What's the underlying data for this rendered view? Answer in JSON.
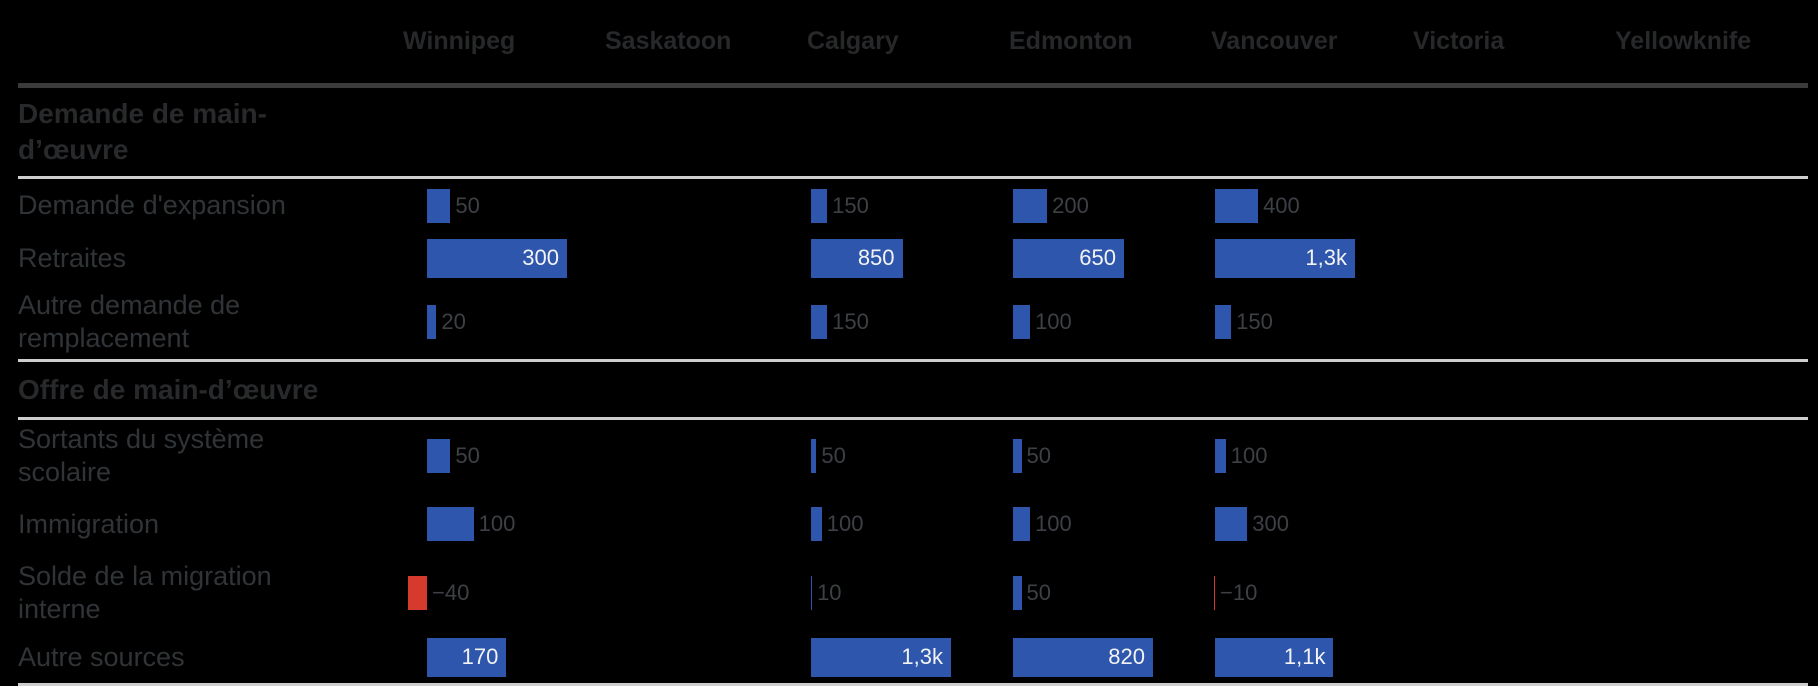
{
  "chart_data": {
    "type": "bar",
    "orientation": "horizontal",
    "columns": [
      "Winnipeg",
      "Saskatoon",
      "Calgary",
      "Edmonton",
      "Vancouver",
      "Victoria",
      "Yellowknife"
    ],
    "sections": [
      {
        "title": "Demande de main-d’œuvre",
        "rows": [
          {
            "label": "Demande d'expansion",
            "values": [
              50,
              null,
              150,
              200,
              400,
              null,
              null
            ],
            "displays": [
              "50",
              "",
              "150",
              "200",
              "400",
              "",
              ""
            ],
            "labels_inside": false
          },
          {
            "label": "Retraites",
            "values": [
              300,
              null,
              850,
              650,
              1300,
              null,
              null
            ],
            "displays": [
              "300",
              "",
              "850",
              "650",
              "1,3k",
              "",
              ""
            ],
            "labels_inside": true
          },
          {
            "label": "Autre demande de remplacement",
            "values": [
              20,
              null,
              150,
              100,
              150,
              null,
              null
            ],
            "displays": [
              "20",
              "",
              "150",
              "100",
              "150",
              "",
              ""
            ],
            "labels_inside": false
          }
        ]
      },
      {
        "title": "Offre de main-d’œuvre",
        "rows": [
          {
            "label": "Sortants du système scolaire",
            "values": [
              50,
              null,
              50,
              50,
              100,
              null,
              null
            ],
            "displays": [
              "50",
              "",
              "50",
              "50",
              "100",
              "",
              ""
            ],
            "labels_inside": false
          },
          {
            "label": "Immigration",
            "values": [
              100,
              null,
              100,
              100,
              300,
              null,
              null
            ],
            "displays": [
              "100",
              "",
              "100",
              "100",
              "300",
              "",
              ""
            ],
            "labels_inside": false
          },
          {
            "label": "Solde de la migration interne",
            "values": [
              -40,
              null,
              10,
              50,
              -10,
              null,
              null
            ],
            "displays": [
              "−40",
              "",
              "10",
              "50",
              "−10",
              "",
              ""
            ],
            "labels_inside": false
          },
          {
            "label": "Autre sources",
            "values": [
              170,
              null,
              1300,
              820,
              1100,
              null,
              null
            ],
            "displays": [
              "170",
              "",
              "1,3k",
              "820",
              "1,1k",
              "",
              ""
            ],
            "labels_inside": true
          }
        ]
      }
    ],
    "colors": {
      "positive_bar": "#2e56ac",
      "negative_bar": "#d63a2d",
      "inside_label": "#f2f3f4",
      "background": "#000000"
    }
  }
}
